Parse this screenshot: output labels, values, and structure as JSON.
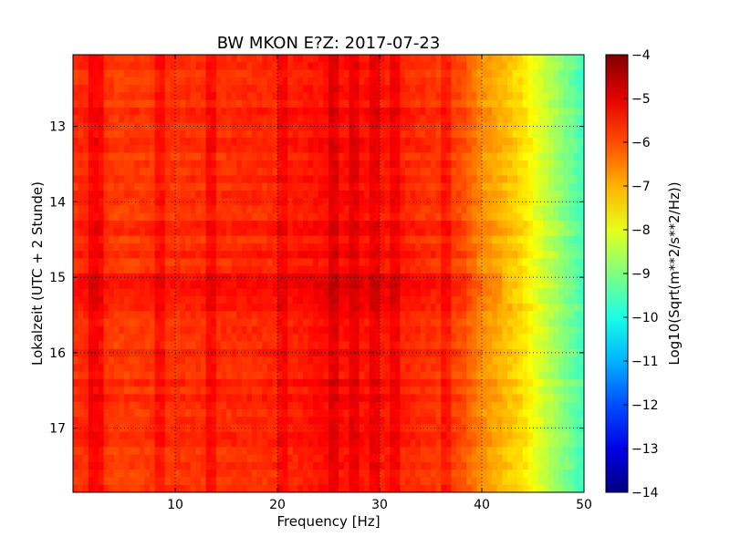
{
  "chart_data": {
    "type": "heatmap",
    "title": "BW MKON E?Z: 2017-07-23",
    "xlabel": "Frequency [Hz]",
    "ylabel": "Lokalzeit (UTC + 2 Stunde)",
    "xlim": [
      0,
      50
    ],
    "ylim": [
      12.05,
      17.85
    ],
    "x_ticks": [
      10,
      20,
      30,
      40,
      50
    ],
    "x_tick_labels": [
      "10",
      "20",
      "30",
      "40",
      "50"
    ],
    "y_ticks": [
      13,
      14,
      15,
      16,
      17
    ],
    "y_tick_labels": [
      "13",
      "14",
      "15",
      "16",
      "17"
    ],
    "grid": true,
    "colorbar": {
      "label": "Log10(Sqrt(m**2/s**2/Hz))",
      "range": [
        -14,
        -4
      ],
      "ticks": [
        -4,
        -5,
        -6,
        -7,
        -8,
        -9,
        -10,
        -11,
        -12,
        -13,
        -14
      ],
      "tick_labels": [
        "−4",
        "−5",
        "−6",
        "−7",
        "−8",
        "−9",
        "−10",
        "−11",
        "−12",
        "−13",
        "−14"
      ],
      "colormap": "jet"
    },
    "frequency_profile": {
      "frequency_hz": [
        0,
        2,
        4,
        10,
        20,
        25,
        30,
        35,
        38,
        40,
        42,
        44,
        46,
        48,
        50
      ],
      "level": [
        -5.7,
        -5.5,
        -5.8,
        -5.7,
        -5.6,
        -5.3,
        -5.4,
        -5.7,
        -5.9,
        -6.6,
        -7.0,
        -7.4,
        -8.2,
        -8.9,
        -9.6
      ]
    },
    "vertical_lines_hz": [
      2,
      2.5,
      8.5,
      13.5,
      20.5,
      25.5,
      27.5,
      29.5,
      31.5,
      36.5
    ],
    "high_energy_band_hours": [
      15.0,
      15.3
    ]
  }
}
